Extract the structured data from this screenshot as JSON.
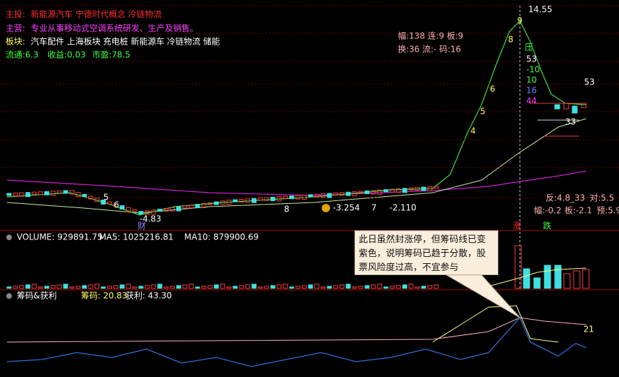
{
  "header": {
    "main_invest": {
      "label": "主投:",
      "value": "新能源汽车 宁德时代概念 冷链物流"
    },
    "main_business": {
      "label": "主营:",
      "value": "专业从事移动式空调系统研发、生产及销售。"
    },
    "sectors": {
      "label": "板块:",
      "value": "汽车配件 上海板块 充电桩 新能源车 冷链物流 储能"
    },
    "stats": [
      "流通:6.3",
      "收益:0.03",
      "市盈:78.5"
    ]
  },
  "right_stats": {
    "row1": "幅:138 连:9 板:9",
    "row2": "换:36 流:- 码:16"
  },
  "price_panel": {
    "high": "14.55",
    "counts": [
      "4",
      "5",
      "6",
      "8",
      "9"
    ],
    "right_labels": [
      "压",
      "53",
      "-10",
      "10",
      "16",
      "44",
      "53",
      "33"
    ],
    "bottom_labels": [
      "5",
      "6",
      "-4.83",
      "财",
      "8",
      "-3.254",
      "7",
      "-2.110"
    ],
    "summary": [
      "反:4.8_33",
      "对:5.5",
      "幅:-0.2",
      "板:-2.1",
      "预:5.9"
    ],
    "markers": [
      "涨",
      "跌"
    ]
  },
  "volume_panel": {
    "volume": "VOLUME: 929891.75",
    "ma5": "MA5: 1025216.81",
    "ma10": "MA10: 879900.69"
  },
  "chip_panel": {
    "title": "筹码&获利",
    "chips": "筹码: 20.83",
    "profit": "获利: 43.30",
    "last": "21"
  },
  "callout": "此日虽然封涨停，但筹码线已变紫色，说明筹码已趋于分散，股票风险度过高，不宜参与"
}
